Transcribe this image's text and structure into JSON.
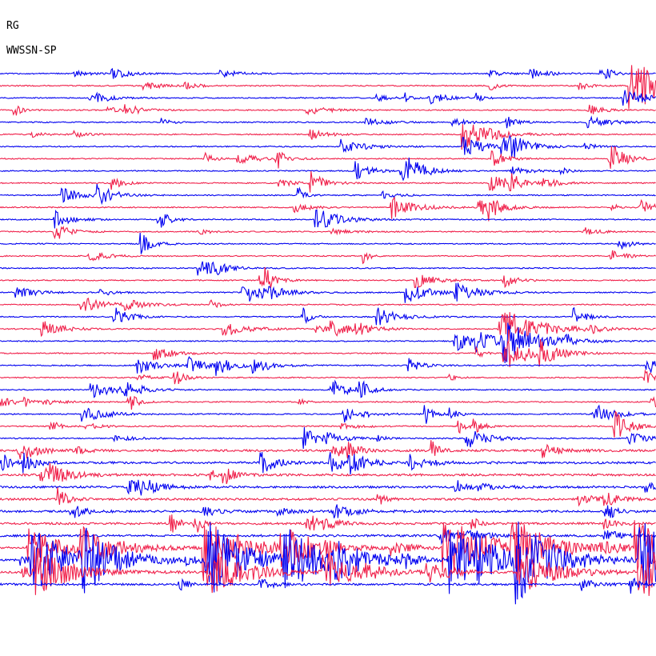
{
  "header": {
    "station": "RG",
    "instrument": "WWSSN-SP"
  }
}
